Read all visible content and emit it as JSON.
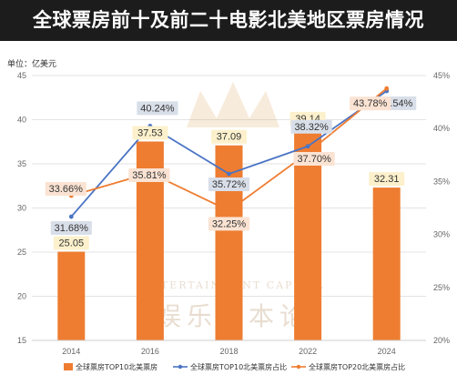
{
  "title": "全球票房前十及前二十电影北美地区票房情况",
  "chart_data": {
    "type": "bar+line",
    "unit_label": "单位：亿美元",
    "categories": [
      "2014",
      "2016",
      "2018",
      "2022",
      "2024"
    ],
    "bar_series": {
      "name": "全球票房TOP10北美票房",
      "values": [
        25.05,
        37.53,
        37.09,
        39.14,
        32.31
      ],
      "labels": [
        "25.05",
        "37.53",
        "37.09",
        "39.14",
        "32.31"
      ],
      "color": "#ee7d31"
    },
    "line_series": [
      {
        "name": "全球票房TOP10北美票房占比",
        "values": [
          31.68,
          40.24,
          35.72,
          38.32,
          43.54
        ],
        "labels": [
          "31.68%",
          "40.24%",
          "35.72%",
          "38.32%",
          "43.54%"
        ],
        "color": "#4a74c4"
      },
      {
        "name": "全球票房TOP20北美票房占比",
        "values": [
          33.66,
          35.81,
          32.25,
          37.7,
          43.78
        ],
        "labels": [
          "33.66%",
          "35.81%",
          "32.25%",
          "37.70%",
          "43.78%"
        ],
        "color": "#ee7d31"
      }
    ],
    "left_axis": {
      "min": 15,
      "max": 45,
      "ticks": [
        "15",
        "20",
        "25",
        "30",
        "35",
        "40",
        "45"
      ]
    },
    "right_axis": {
      "min": 20,
      "max": 45,
      "ticks": [
        "20%",
        "25%",
        "30%",
        "35%",
        "40%",
        "45%"
      ]
    },
    "legend_position": "bottom",
    "grid": true
  },
  "watermark": {
    "cn": "娱乐资本论",
    "en": "ENTERTAINMENT CAPITAL"
  }
}
